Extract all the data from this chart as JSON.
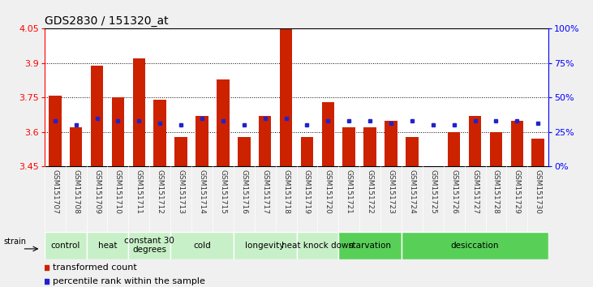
{
  "title": "GDS2830 / 151320_at",
  "samples": [
    "GSM151707",
    "GSM151708",
    "GSM151709",
    "GSM151710",
    "GSM151711",
    "GSM151712",
    "GSM151713",
    "GSM151714",
    "GSM151715",
    "GSM151716",
    "GSM151717",
    "GSM151718",
    "GSM151719",
    "GSM151720",
    "GSM151721",
    "GSM151722",
    "GSM151723",
    "GSM151724",
    "GSM151725",
    "GSM151726",
    "GSM151727",
    "GSM151728",
    "GSM151729",
    "GSM151730"
  ],
  "bar_values": [
    3.76,
    3.62,
    3.89,
    3.75,
    3.92,
    3.74,
    3.58,
    3.67,
    3.83,
    3.58,
    3.67,
    4.05,
    3.58,
    3.73,
    3.62,
    3.62,
    3.65,
    3.58,
    3.45,
    3.6,
    3.67,
    3.6,
    3.65,
    3.57
  ],
  "blue_dot_values": [
    3.65,
    3.63,
    3.66,
    3.65,
    3.65,
    3.64,
    3.63,
    3.66,
    3.65,
    3.63,
    3.66,
    3.66,
    3.63,
    3.65,
    3.65,
    3.65,
    3.64,
    3.65,
    3.63,
    3.63,
    3.65,
    3.65,
    3.65,
    3.64
  ],
  "groups": [
    {
      "label": "control",
      "start": 0,
      "end": 2,
      "color": "#c8f0c8"
    },
    {
      "label": "heat",
      "start": 2,
      "end": 4,
      "color": "#c8f0c8"
    },
    {
      "label": "constant 30\ndegrees",
      "start": 4,
      "end": 6,
      "color": "#c8f0c8"
    },
    {
      "label": "cold",
      "start": 6,
      "end": 9,
      "color": "#c8f0c8"
    },
    {
      "label": "longevity",
      "start": 9,
      "end": 12,
      "color": "#c8f0c8"
    },
    {
      "label": "heat knock down",
      "start": 12,
      "end": 14,
      "color": "#c8f0c8"
    },
    {
      "label": "starvation",
      "start": 14,
      "end": 17,
      "color": "#58d058"
    },
    {
      "label": "desiccation",
      "start": 17,
      "end": 24,
      "color": "#58d058"
    }
  ],
  "ylim": [
    3.45,
    4.05
  ],
  "y_ticks_left": [
    3.45,
    3.6,
    3.75,
    3.9,
    4.05
  ],
  "y_ticks_right_vals": [
    3.45,
    3.6,
    3.75,
    3.9,
    4.05
  ],
  "y_ticks_right_labels": [
    "0%",
    "25%",
    "50%",
    "75%",
    "100%"
  ],
  "grid_yticks": [
    3.6,
    3.75,
    3.9
  ],
  "bar_color": "#cc2200",
  "dot_color": "#2222cc",
  "bg_color": "#f0f0f0",
  "plot_bg": "#ffffff",
  "title_fontsize": 10,
  "axis_tick_fontsize": 8,
  "sample_fontsize": 6.5,
  "group_label_fontsize": 7.5,
  "legend_fontsize": 8
}
